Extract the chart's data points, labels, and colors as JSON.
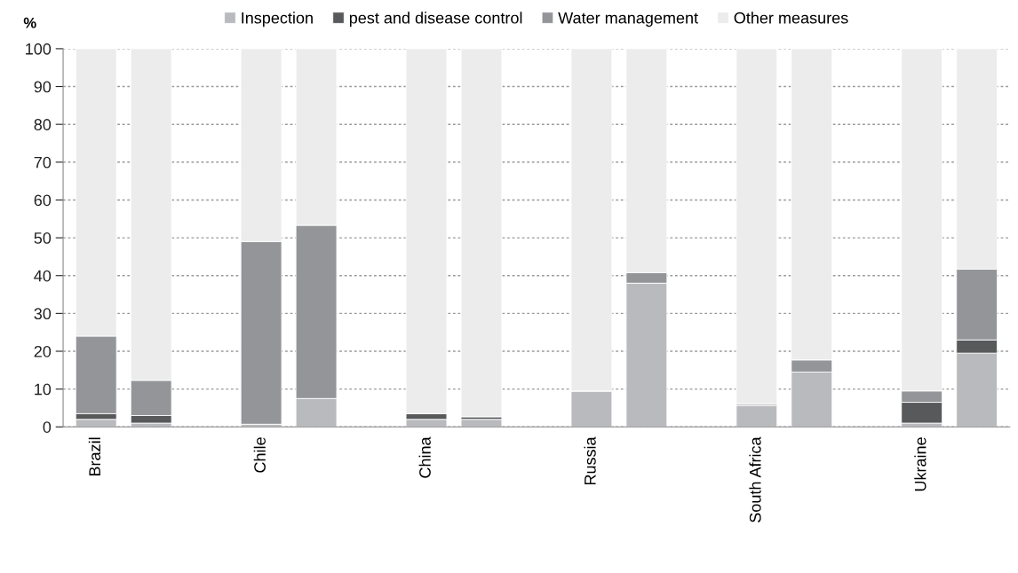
{
  "chart_data": {
    "type": "bar",
    "stacked": true,
    "ylabel": "%",
    "categories": [
      "Brazil",
      null,
      null,
      "Chile",
      null,
      null,
      "China",
      null,
      null,
      "Russia",
      null,
      null,
      "South Africa",
      null,
      null,
      "Ukraine",
      null
    ],
    "series": [
      {
        "name": "Inspection",
        "color": "#b9babd",
        "values": [
          2,
          1,
          null,
          0.7,
          7.5,
          null,
          2,
          2,
          null,
          9.5,
          38,
          null,
          5.7,
          14.5,
          null,
          1,
          19.5
        ]
      },
      {
        "name": "pest and disease control",
        "color": "#58595b",
        "values": [
          1.5,
          2,
          null,
          0,
          0,
          null,
          1.5,
          0.7,
          null,
          0,
          0,
          null,
          0,
          0,
          null,
          5.5,
          3.5
        ]
      },
      {
        "name": "Water management",
        "color": "#939598",
        "values": [
          20.5,
          9.3,
          null,
          48.3,
          45.8,
          null,
          0,
          0,
          null,
          0,
          2.8,
          null,
          0.4,
          3.2,
          null,
          3,
          18.7
        ]
      },
      {
        "name": "Other measures",
        "color": "#ececec",
        "values": [
          76,
          87.7,
          null,
          51,
          46.7,
          null,
          96.5,
          97.3,
          null,
          90.5,
          59.2,
          null,
          93.9,
          82.3,
          null,
          90.5,
          58.3
        ]
      }
    ],
    "ylim": [
      0,
      100
    ],
    "yticks": [
      0,
      10,
      20,
      30,
      40,
      50,
      60,
      70,
      80,
      90,
      100
    ],
    "grid": "y",
    "legend": "top"
  }
}
